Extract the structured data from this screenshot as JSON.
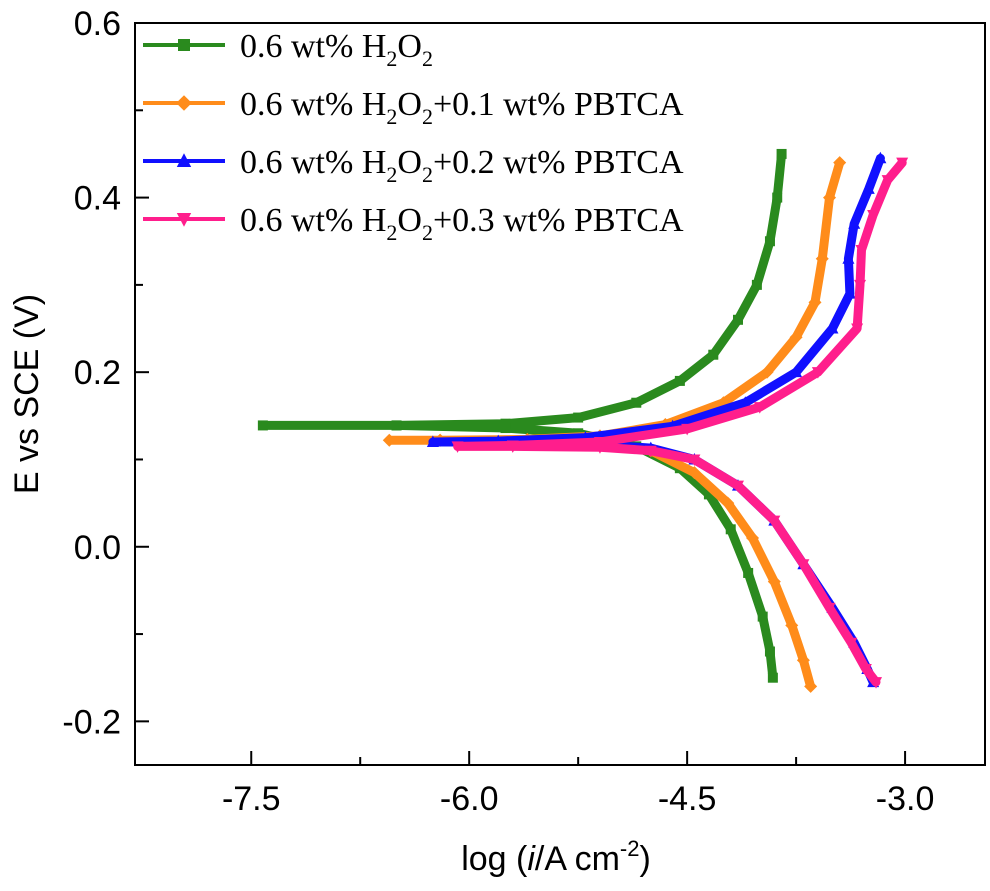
{
  "chart_data": {
    "type": "line",
    "xlabel_parts": {
      "prefix": "log (",
      "italic": "i",
      "suffix": "/A cm",
      "sup": "-2",
      "close": ")"
    },
    "ylabel": "E vs SCE (V)",
    "xlim": [
      -8.3,
      -2.45
    ],
    "ylim": [
      -0.25,
      0.6
    ],
    "xticks": [
      {
        "value": -7.5,
        "label": "-7.5"
      },
      {
        "value": -6.0,
        "label": "-6.0"
      },
      {
        "value": -4.5,
        "label": "-4.5"
      },
      {
        "value": -3.0,
        "label": "-3.0"
      }
    ],
    "yticks": [
      {
        "value": -0.2,
        "label": "-0.2"
      },
      {
        "value": 0.0,
        "label": "0.0"
      },
      {
        "value": 0.2,
        "label": "0.2"
      },
      {
        "value": 0.4,
        "label": "0.4"
      },
      {
        "value": 0.6,
        "label": "0.6"
      }
    ],
    "legend_position": "top-left",
    "series": [
      {
        "name_parts": {
          "base": "0.6 wt% H",
          "sub1": "2",
          "mid": "O",
          "sub2": "2",
          "tail": ""
        },
        "color": "#2a8a1e",
        "marker": "square",
        "points": [
          [
            -3.85,
            0.45
          ],
          [
            -3.88,
            0.4
          ],
          [
            -3.93,
            0.35
          ],
          [
            -4.02,
            0.3
          ],
          [
            -4.15,
            0.26
          ],
          [
            -4.32,
            0.22
          ],
          [
            -4.55,
            0.19
          ],
          [
            -4.85,
            0.165
          ],
          [
            -5.25,
            0.148
          ],
          [
            -5.75,
            0.141
          ],
          [
            -6.5,
            0.139
          ],
          [
            -7.42,
            0.139
          ],
          [
            -6.5,
            0.139
          ],
          [
            -5.75,
            0.136
          ],
          [
            -5.25,
            0.13
          ],
          [
            -4.85,
            0.115
          ],
          [
            -4.55,
            0.09
          ],
          [
            -4.35,
            0.06
          ],
          [
            -4.2,
            0.02
          ],
          [
            -4.08,
            -0.03
          ],
          [
            -3.98,
            -0.08
          ],
          [
            -3.93,
            -0.12
          ],
          [
            -3.91,
            -0.15
          ]
        ]
      },
      {
        "name_parts": {
          "base": "0.6 wt% H",
          "sub1": "2",
          "mid": "O",
          "sub2": "2",
          "tail": "+0.1 wt% PBTCA"
        },
        "color": "#ff8c1a",
        "marker": "diamond",
        "points": [
          [
            -3.45,
            0.44
          ],
          [
            -3.52,
            0.4
          ],
          [
            -3.57,
            0.33
          ],
          [
            -3.62,
            0.28
          ],
          [
            -3.75,
            0.24
          ],
          [
            -3.95,
            0.2
          ],
          [
            -4.25,
            0.165
          ],
          [
            -4.65,
            0.14
          ],
          [
            -5.1,
            0.127
          ],
          [
            -5.6,
            0.123
          ],
          [
            -6.2,
            0.122
          ],
          [
            -6.55,
            0.122
          ],
          [
            -6.2,
            0.122
          ],
          [
            -5.6,
            0.12
          ],
          [
            -5.1,
            0.118
          ],
          [
            -4.75,
            0.11
          ],
          [
            -4.45,
            0.085
          ],
          [
            -4.22,
            0.05
          ],
          [
            -4.05,
            0.01
          ],
          [
            -3.9,
            -0.04
          ],
          [
            -3.78,
            -0.09
          ],
          [
            -3.7,
            -0.13
          ],
          [
            -3.65,
            -0.16
          ]
        ]
      },
      {
        "name_parts": {
          "base": "0.6 wt% H",
          "sub1": "2",
          "mid": "O",
          "sub2": "2",
          "tail": "+0.2 wt% PBTCA"
        },
        "color": "#1010ff",
        "marker": "triangle-up",
        "points": [
          [
            -3.17,
            0.445
          ],
          [
            -3.25,
            0.41
          ],
          [
            -3.35,
            0.37
          ],
          [
            -3.39,
            0.33
          ],
          [
            -3.38,
            0.29
          ],
          [
            -3.5,
            0.25
          ],
          [
            -3.75,
            0.2
          ],
          [
            -4.1,
            0.165
          ],
          [
            -4.6,
            0.138
          ],
          [
            -5.2,
            0.125
          ],
          [
            -5.8,
            0.121
          ],
          [
            -6.25,
            0.12
          ],
          [
            -5.8,
            0.12
          ],
          [
            -5.2,
            0.118
          ],
          [
            -4.75,
            0.113
          ],
          [
            -4.45,
            0.1
          ],
          [
            -4.15,
            0.07
          ],
          [
            -3.9,
            0.03
          ],
          [
            -3.7,
            -0.02
          ],
          [
            -3.5,
            -0.07
          ],
          [
            -3.35,
            -0.11
          ],
          [
            -3.26,
            -0.14
          ],
          [
            -3.22,
            -0.155
          ]
        ]
      },
      {
        "name_parts": {
          "base": "0.6 wt% H",
          "sub1": "2",
          "mid": "O",
          "sub2": "2",
          "tail": "+0.3 wt% PBTCA"
        },
        "color": "#ff1e8c",
        "marker": "triangle-down",
        "points": [
          [
            -3.02,
            0.44
          ],
          [
            -3.12,
            0.42
          ],
          [
            -3.22,
            0.38
          ],
          [
            -3.3,
            0.34
          ],
          [
            -3.31,
            0.3
          ],
          [
            -3.33,
            0.25
          ],
          [
            -3.6,
            0.2
          ],
          [
            -4.0,
            0.16
          ],
          [
            -4.5,
            0.135
          ],
          [
            -5.1,
            0.12
          ],
          [
            -5.7,
            0.116
          ],
          [
            -6.08,
            0.115
          ],
          [
            -5.7,
            0.115
          ],
          [
            -5.1,
            0.114
          ],
          [
            -4.75,
            0.11
          ],
          [
            -4.45,
            0.1
          ],
          [
            -4.15,
            0.07
          ],
          [
            -3.9,
            0.03
          ],
          [
            -3.7,
            -0.02
          ],
          [
            -3.52,
            -0.07
          ],
          [
            -3.37,
            -0.11
          ],
          [
            -3.27,
            -0.14
          ],
          [
            -3.2,
            -0.155
          ]
        ]
      }
    ]
  }
}
